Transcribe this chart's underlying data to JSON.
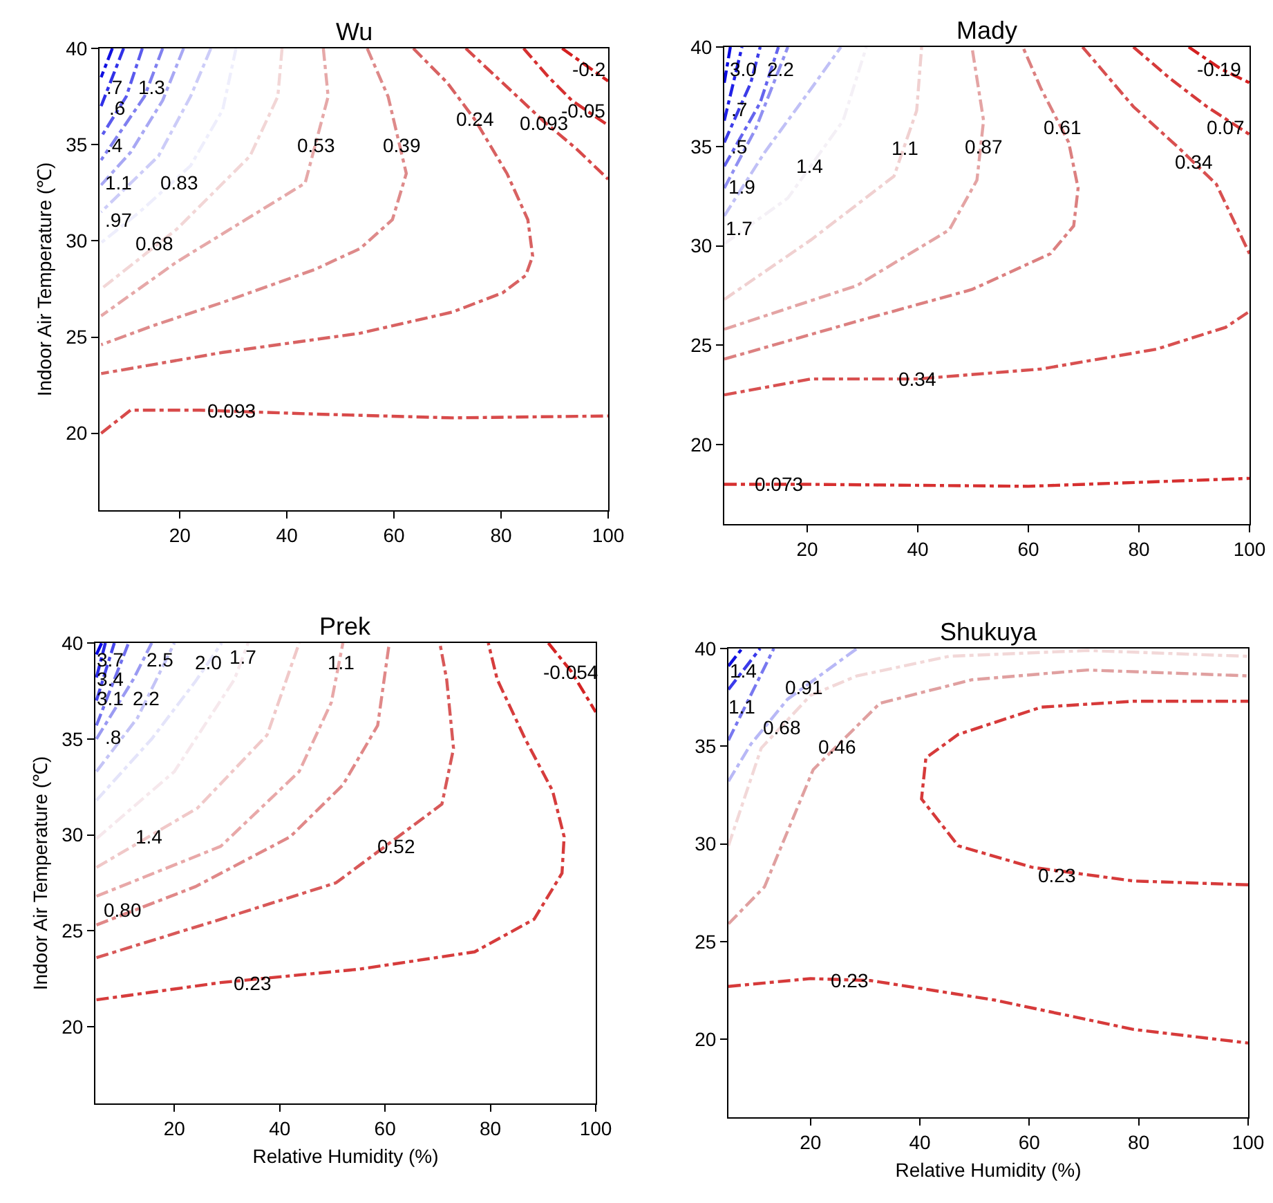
{
  "chart_data": [
    {
      "type": "line",
      "title": "Wu",
      "ylabel": "Indoor Air Temperature (℃)",
      "xlim": [
        5,
        100
      ],
      "xticks": [
        20,
        40,
        60,
        80,
        100
      ],
      "ylim": [
        16,
        40
      ],
      "yticks": [
        20,
        25,
        30,
        35,
        40
      ],
      "line_style": "dashed",
      "series": [
        {
          "color": "#d84a4a",
          "x": [
            5.3,
            10.8,
            23.7,
            45.1,
            70.9,
            100
          ],
          "values": [
            20.0,
            21.2,
            21.2,
            21.0,
            20.8,
            20.9
          ]
        },
        {
          "color": "#d86262",
          "x": [
            63.6,
            70.0,
            75.1,
            81.1,
            85.0,
            85.9,
            84.6,
            80.3,
            70.9,
            53.7,
            28.0,
            5.3
          ],
          "values": [
            40,
            38.2,
            36.3,
            33.5,
            31.1,
            29.2,
            28.2,
            27.3,
            26.3,
            25.2,
            24.2,
            23.1
          ]
        },
        {
          "color": "#de8a8a",
          "x": [
            55.0,
            58.9,
            62.3,
            59.7,
            53.7,
            45.1,
            28.0,
            15.1,
            5.3
          ],
          "values": [
            40,
            37.5,
            33.5,
            31.1,
            29.6,
            28.5,
            26.8,
            25.6,
            24.6
          ]
        },
        {
          "color": "#e6a8a8",
          "x": [
            46.8,
            47.7,
            43.4,
            32.3,
            19.4,
            5.3
          ],
          "values": [
            40,
            37.5,
            33.0,
            31.1,
            28.9,
            26.1
          ]
        },
        {
          "color": "#f2d6d6",
          "x": [
            39.1,
            38.3,
            33.1,
            19.4,
            5.3
          ],
          "values": [
            40,
            37.5,
            34.4,
            30.6,
            27.5
          ]
        },
        {
          "color": "#eeeefc",
          "x": [
            30.5,
            28.0,
            22.0,
            12.5,
            5.3
          ],
          "values": [
            40,
            36.8,
            33.9,
            31.5,
            29.9
          ]
        },
        {
          "color": "#ccccf8",
          "x": [
            25.8,
            22.0,
            16.0,
            5.3
          ],
          "values": [
            40,
            37.5,
            34.4,
            31.5
          ]
        },
        {
          "color": "#a8a8f4",
          "x": [
            20.7,
            16.8,
            10.8,
            5.3
          ],
          "values": [
            40,
            37.3,
            34.6,
            32.9
          ]
        },
        {
          "color": "#8080f0",
          "x": [
            16.8,
            13.4,
            5.3
          ],
          "values": [
            40,
            37.5,
            34.2
          ]
        },
        {
          "color": "#5a5aee",
          "x": [
            13.0,
            10.0,
            5.3
          ],
          "values": [
            40,
            37.5,
            35.4
          ]
        },
        {
          "color": "#3030e8",
          "x": [
            9.5,
            5.3
          ],
          "values": [
            40,
            37.0
          ]
        },
        {
          "color": "#1010e0",
          "x": [
            7.4,
            5.3
          ],
          "values": [
            40,
            38.5
          ]
        },
        {
          "color": "#d84a4a",
          "x": [
            73.4,
            81.1,
            88.0,
            94.0,
            100
          ],
          "values": [
            40,
            38.0,
            36.2,
            34.8,
            33.2
          ]
        },
        {
          "color": "#d63030",
          "x": [
            84.2,
            88.9,
            93.2,
            100
          ],
          "values": [
            40,
            38.5,
            37.3,
            36.0
          ]
        },
        {
          "color": "#d42020",
          "x": [
            91.4,
            100
          ],
          "values": [
            40,
            38.3
          ]
        }
      ],
      "annotations": [
        {
          "text": "0.093",
          "x": 29.7,
          "y": 21.2
        },
        {
          "text": "0.24",
          "x": 75.1,
          "y": 36.3
        },
        {
          "text": "0.093",
          "x": 88.0,
          "y": 36.1
        },
        {
          "text": "-0.2",
          "x": 96.5,
          "y": 38.9
        },
        {
          "text": "-0.05",
          "x": 95.3,
          "y": 36.8
        },
        {
          "text": "0.53",
          "x": 45.3,
          "y": 35.0
        },
        {
          "text": "0.39",
          "x": 61.4,
          "y": 35.0
        },
        {
          "text": "0.83",
          "x": 19.8,
          "y": 33.0
        },
        {
          "text": "0.68",
          "x": 15.1,
          "y": 29.9
        },
        {
          "text": "1.1",
          "x": 8.7,
          "y": 33.0
        },
        {
          "text": ".97",
          "x": 8.7,
          "y": 31.1
        },
        {
          "text": ".4",
          "x": 7.8,
          "y": 35.0
        },
        {
          "text": ".6",
          "x": 8.3,
          "y": 36.9
        },
        {
          "text": ".7",
          "x": 7.8,
          "y": 38.0
        },
        {
          "text": "1.3",
          "x": 14.7,
          "y": 38.0
        }
      ]
    },
    {
      "type": "line",
      "title": "Mady",
      "xlim": [
        5,
        100
      ],
      "xticks": [
        20,
        40,
        60,
        80,
        100
      ],
      "ylim": [
        16,
        40
      ],
      "yticks": [
        20,
        25,
        30,
        35,
        40
      ],
      "line_style": "dashed",
      "series": [
        {
          "color": "#d63030",
          "x": [
            5,
            20,
            60,
            100
          ],
          "values": [
            18.0,
            18.0,
            17.9,
            18.3
          ]
        },
        {
          "color": "#d85050",
          "x": [
            5,
            20.7,
            39.8,
            62.3,
            83.2,
            95.7,
            100
          ],
          "values": [
            22.5,
            23.3,
            23.3,
            23.8,
            24.8,
            25.9,
            26.7
          ]
        },
        {
          "color": "#dc8080",
          "x": [
            5,
            29,
            49.8,
            64,
            68.2,
            69,
            67.3,
            62.3,
            59
          ],
          "values": [
            24.3,
            26.2,
            27.8,
            29.6,
            31.0,
            32.9,
            35.2,
            37.9,
            40
          ]
        },
        {
          "color": "#e4a4a4",
          "x": [
            5,
            29,
            45.7,
            50.7,
            51.9,
            49.8
          ],
          "values": [
            25.8,
            28.0,
            30.8,
            33.3,
            36.3,
            40
          ]
        },
        {
          "color": "#f0d0d0",
          "x": [
            5,
            20.7,
            35.7,
            39.8,
            40.7
          ],
          "values": [
            27.3,
            30.3,
            33.5,
            36.8,
            40
          ]
        },
        {
          "color": "#f4f0f6",
          "x": [
            5,
            16.5,
            26.5,
            30.7
          ],
          "values": [
            30.1,
            32.4,
            36.3,
            40
          ]
        },
        {
          "color": "#c0c0f6",
          "x": [
            5,
            12.3,
            20.7,
            26.1
          ],
          "values": [
            31.5,
            34.7,
            37.9,
            40
          ]
        },
        {
          "color": "#9090f2",
          "x": [
            5,
            10.7,
            16.5
          ],
          "values": [
            32.9,
            35.9,
            40
          ]
        },
        {
          "color": "#6464ee",
          "x": [
            5,
            11.5,
            14.8
          ],
          "values": [
            34.0,
            37.2,
            40
          ]
        },
        {
          "color": "#3c3ce8",
          "x": [
            5,
            9.8,
            11.5
          ],
          "values": [
            35.2,
            38.2,
            40
          ]
        },
        {
          "color": "#2020e6",
          "x": [
            5,
            8.2
          ],
          "values": [
            36.3,
            40
          ]
        },
        {
          "color": "#0a0ae0",
          "x": [
            5,
            6.1
          ],
          "values": [
            38.2,
            40
          ]
        },
        {
          "color": "#d85050",
          "x": [
            69.8,
            79,
            87.3,
            94,
            100
          ],
          "values": [
            40,
            37,
            34.9,
            33.1,
            29.6
          ]
        },
        {
          "color": "#d63a3a",
          "x": [
            79,
            85.7,
            92.3,
            100
          ],
          "values": [
            40,
            38.4,
            37.0,
            35.6
          ]
        },
        {
          "color": "#d42020",
          "x": [
            89,
            94.8,
            100
          ],
          "values": [
            40,
            38.9,
            38.2
          ]
        }
      ],
      "annotations": [
        {
          "text": "0.073",
          "x": 14.8,
          "y": 18.0
        },
        {
          "text": "0.34",
          "x": 39.8,
          "y": 23.3
        },
        {
          "text": "0.61",
          "x": 66.1,
          "y": 36.0
        },
        {
          "text": "0.87",
          "x": 51.9,
          "y": 35.0
        },
        {
          "text": "1.1",
          "x": 37.8,
          "y": 34.9
        },
        {
          "text": "1.4",
          "x": 20.6,
          "y": 34.0
        },
        {
          "text": "1.7",
          "x": 7.8,
          "y": 30.9
        },
        {
          "text": "1.9",
          "x": 8.2,
          "y": 33.0
        },
        {
          "text": "2.2",
          "x": 15.25,
          "y": 38.9
        },
        {
          "text": ".5",
          "x": 7.7,
          "y": 35.0
        },
        {
          "text": ".7",
          "x": 7.7,
          "y": 36.9
        },
        {
          "text": "3.0",
          "x": 8.5,
          "y": 38.9
        },
        {
          "text": "0.34",
          "x": 89.8,
          "y": 34.2
        },
        {
          "text": "0.07",
          "x": 95.5,
          "y": 36.0
        },
        {
          "text": "-0.19",
          "x": 94.5,
          "y": 38.9
        }
      ]
    },
    {
      "type": "line",
      "title": "Prek",
      "xlabel": "Relative Humidity (%)",
      "ylabel": "Indoor Air Temperature (℃)",
      "xlim": [
        5,
        100
      ],
      "xticks": [
        20,
        40,
        60,
        80,
        100
      ],
      "ylim": [
        16,
        40
      ],
      "yticks": [
        20,
        25,
        30,
        35,
        40
      ],
      "line_style": "dashed",
      "series": [
        {
          "color": "#d63c3c",
          "x": [
            5.2,
            28.8,
            55.1,
            77,
            88.3,
            93.6,
            94,
            91.8,
            86.6,
            81.3,
            79.6
          ],
          "values": [
            21.4,
            22.3,
            23.0,
            23.9,
            25.6,
            28.0,
            29.9,
            32.3,
            35.0,
            38.1,
            40
          ]
        },
        {
          "color": "#d85858",
          "x": [
            5.2,
            28.8,
            50.7,
            70.8,
            73,
            71.7,
            70.4
          ],
          "values": [
            23.6,
            25.6,
            27.5,
            31.6,
            34.5,
            38.1,
            40
          ]
        },
        {
          "color": "#e08888",
          "x": [
            5.2,
            24,
            42,
            52,
            58.6,
            60.8
          ],
          "values": [
            25.3,
            27.3,
            29.9,
            32.6,
            35.7,
            40
          ]
        },
        {
          "color": "#e8a8a8",
          "x": [
            5.2,
            28.8,
            43.7,
            49.8,
            52
          ],
          "values": [
            26.8,
            29.4,
            33.3,
            36.9,
            40
          ]
        },
        {
          "color": "#f0c8c8",
          "x": [
            5.2,
            24.4,
            37.6,
            43.7
          ],
          "values": [
            28.3,
            31.4,
            35.2,
            40
          ]
        },
        {
          "color": "#f6e8ec",
          "x": [
            5.2,
            20,
            31.4,
            34
          ],
          "values": [
            29.8,
            33.3,
            38.1,
            40
          ]
        },
        {
          "color": "#e4e4fa",
          "x": [
            5.2,
            15.7,
            24,
            29
          ],
          "values": [
            31.8,
            35.0,
            38,
            40
          ]
        },
        {
          "color": "#c4c4f6",
          "x": [
            5.2,
            13,
            20
          ],
          "values": [
            33.3,
            36.1,
            40
          ]
        },
        {
          "color": "#9a9af2",
          "x": [
            5.2,
            12.2,
            15.7
          ],
          "values": [
            35.0,
            38.1,
            40
          ]
        },
        {
          "color": "#7070ee",
          "x": [
            5.2,
            11.3
          ],
          "values": [
            35.7,
            40
          ]
        },
        {
          "color": "#4848ea",
          "x": [
            5.2,
            8.6
          ],
          "values": [
            37.0,
            40
          ]
        },
        {
          "color": "#2828e6",
          "x": [
            5.2,
            6.9
          ],
          "values": [
            38.2,
            40
          ]
        },
        {
          "color": "#0000e0",
          "x": [
            5.2,
            6.2
          ],
          "values": [
            39.4,
            40
          ]
        },
        {
          "color": "#d42424",
          "x": [
            91,
            95.4,
            100
          ],
          "values": [
            40,
            38.5,
            36.4
          ]
        }
      ],
      "annotations": [
        {
          "text": "0.23",
          "x": 34.9,
          "y": 22.3
        },
        {
          "text": "0.52",
          "x": 62.1,
          "y": 29.4
        },
        {
          "text": "0.80",
          "x": 10,
          "y": 26.1
        },
        {
          "text": "1.1",
          "x": 51.6,
          "y": 39.0
        },
        {
          "text": "1.4",
          "x": 15.2,
          "y": 29.9
        },
        {
          "text": "1.7",
          "x": 33.0,
          "y": 39.3
        },
        {
          "text": "2.0",
          "x": 26.5,
          "y": 39.0
        },
        {
          "text": "2.2",
          "x": 14.8,
          "y": 37.1
        },
        {
          "text": "2.5",
          "x": 17.4,
          "y": 39.1
        },
        {
          "text": ".8",
          "x": 8.3,
          "y": 35.1
        },
        {
          "text": "3.1",
          "x": 8.0,
          "y": 37.1
        },
        {
          "text": "3.4",
          "x": 8.0,
          "y": 38.1
        },
        {
          "text": "3.7",
          "x": 8.0,
          "y": 39.1
        },
        {
          "text": "-0.054",
          "x": 95.4,
          "y": 38.5
        }
      ]
    },
    {
      "type": "line",
      "title": "Shukuya",
      "xlabel": "Relative Humidity (%)",
      "xlim": [
        5,
        100
      ],
      "xticks": [
        20,
        40,
        60,
        80,
        100
      ],
      "ylim": [
        16,
        40
      ],
      "yticks": [
        20,
        25,
        30,
        35,
        40
      ],
      "line_style": "dashed",
      "series": [
        {
          "color": "#d63a3a",
          "x": [
            5,
            20,
            31,
            53.7,
            79,
            100
          ],
          "values": [
            22.7,
            23.1,
            23.0,
            22.0,
            20.5,
            19.8
          ]
        },
        {
          "color": "#d63a3a",
          "x": [
            100,
            79,
            60.5,
            47,
            40.3,
            41.1,
            47,
            62.2,
            79,
            100
          ],
          "values": [
            27.9,
            28.1,
            28.8,
            29.9,
            32.3,
            34.4,
            35.6,
            37,
            37.3,
            37.3
          ]
        },
        {
          "color": "#e0a0a0",
          "x": [
            5,
            11.6,
            20.5,
            32.7,
            49.5,
            70.6,
            100
          ],
          "values": [
            25.9,
            27.8,
            33.8,
            37.2,
            38.4,
            38.9,
            38.6
          ]
        },
        {
          "color": "#f2d8d8",
          "x": [
            5,
            11,
            20,
            28.5,
            45.3,
            70.6,
            100
          ],
          "values": [
            29.9,
            34.9,
            37.6,
            38.6,
            39.6,
            39.9,
            39.6
          ]
        },
        {
          "color": "#b8b8f6",
          "x": [
            5,
            9.1,
            15.8,
            28.5
          ],
          "values": [
            33.2,
            35.1,
            37.4,
            40
          ]
        },
        {
          "color": "#7878f0",
          "x": [
            5,
            13.3
          ],
          "values": [
            35.3,
            40
          ]
        },
        {
          "color": "#3a3aea",
          "x": [
            5,
            10.8
          ],
          "values": [
            37.9,
            40
          ]
        },
        {
          "color": "#1010e0",
          "x": [
            5,
            7.5
          ],
          "values": [
            39.1,
            40
          ]
        }
      ],
      "annotations": [
        {
          "text": "0.23",
          "x": 27.2,
          "y": 23.0
        },
        {
          "text": "0.23",
          "x": 65.1,
          "y": 28.4
        },
        {
          "text": "0.46",
          "x": 24.8,
          "y": 35.0
        },
        {
          "text": "0.68",
          "x": 14.7,
          "y": 36.0
        },
        {
          "text": "0.91",
          "x": 18.7,
          "y": 38.0
        },
        {
          "text": "1.1",
          "x": 7.4,
          "y": 37.0
        },
        {
          "text": "1.4",
          "x": 7.8,
          "y": 38.9
        }
      ]
    }
  ]
}
